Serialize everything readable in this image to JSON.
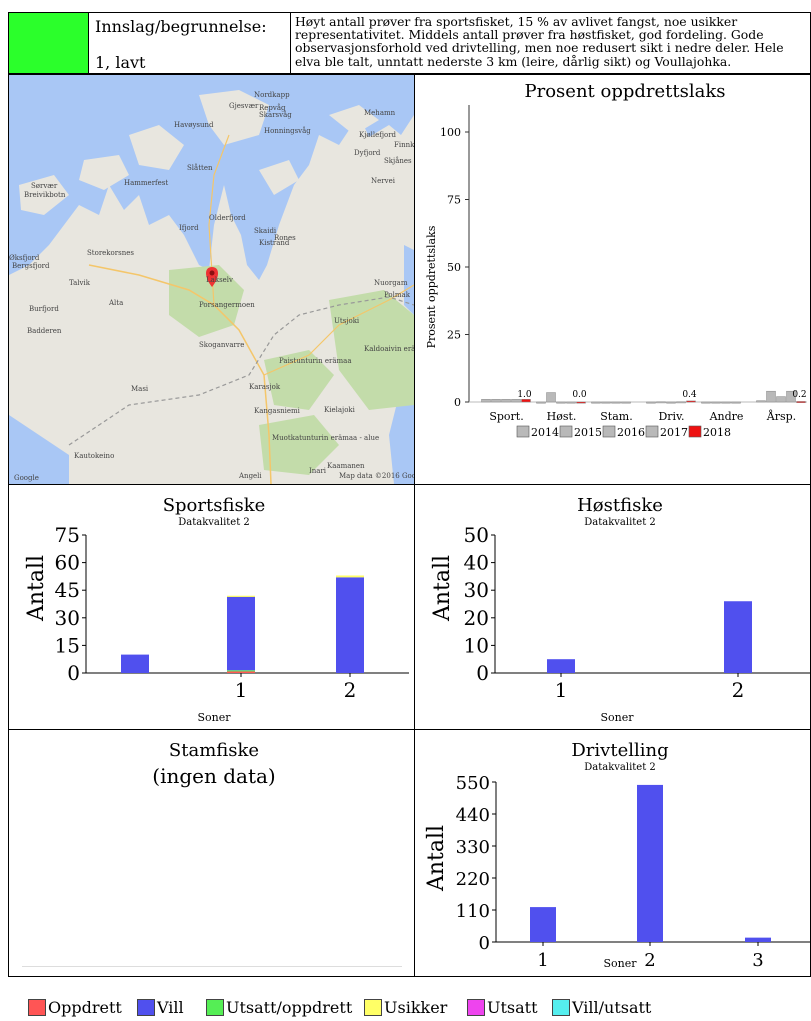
{
  "header": {
    "status_color": "#2bff2b",
    "label": "Innslag/begrunnelse:",
    "rating": "1, lavt",
    "description": "Høyt antall prøver fra sportsfisket, 15 % av avlivet fangst, noe usikker representativitet. Middels antall prøver fra høstfisket, god fordeling. Gode observasjonsforhold ved drivtelling, men noe redusert sikt i nedre deler. Hele elva ble talt, unntatt nederste 3 km (leire, dårlig sikt) og Voullajohka."
  },
  "map": {
    "places": [
      "Nordkapp",
      "Gjesvær",
      "Repvåg",
      "Skarsvåg",
      "Mehamn",
      "Havøysund",
      "Honningsvåg",
      "Kjøllefjord",
      "Finnko",
      "Dyfjord",
      "Slåtten",
      "Skjånes",
      "Sørvær",
      "Hammerfest",
      "Nervei",
      "Breivikbotn",
      "Olderfjord",
      "Ifjord",
      "Skaidi",
      "Kistrand",
      "Rones",
      "Øksfjord",
      "Storekorsnes",
      "Lakselv",
      "Nuorgam",
      "Talvik",
      "Alta",
      "Porsangermoen",
      "Polmak",
      "Burfjord",
      "Skoganvarre",
      "Utsjoki",
      "Badderen",
      "Paistunturin erämaa",
      "Kaldoaivin erämaa",
      "Masi",
      "Karasjok",
      "Kangasniemi",
      "Kielajoki",
      "Muotkatunturin erämaa - alue",
      "Kautokeino",
      "Kaamanen",
      "Angeli",
      "Inari",
      "Bergsfjord",
      "Google",
      "Map data ©2016 Google"
    ],
    "marker": "location-pin-icon"
  },
  "chart_data": [
    {
      "type": "bar",
      "title": "Prosent oppdrettslaks",
      "xlabel": "",
      "ylabel": "Prosent oppdrettslaks",
      "ylim": [
        0,
        110
      ],
      "yticks": [
        0,
        25,
        50,
        75,
        100
      ],
      "categories": [
        "Sport.",
        "Høst.",
        "Stam.",
        "Driv.",
        "Andre",
        "Årsp."
      ],
      "series": [
        {
          "name": "2014",
          "color": "#b9b9b9",
          "values": [
            1.0,
            0,
            0,
            0,
            0,
            0.5
          ]
        },
        {
          "name": "2015",
          "color": "#b9b9b9",
          "values": [
            1.0,
            3.5,
            0,
            0.1,
            0,
            4.0
          ]
        },
        {
          "name": "2016",
          "color": "#b9b9b9",
          "values": [
            1.0,
            0,
            0,
            0,
            0,
            2.0
          ]
        },
        {
          "name": "2017",
          "color": "#b9b9b9",
          "values": [
            1.0,
            0,
            0,
            0.1,
            0,
            4.0
          ]
        },
        {
          "name": "2018",
          "color": "#ee1111",
          "values": [
            1.0,
            0.0,
            null,
            0.4,
            null,
            0.2
          ]
        }
      ],
      "data_labels": [
        "1.0",
        "0.0",
        "",
        "0.4",
        "",
        "0.2"
      ],
      "legend": [
        "2014",
        "2015",
        "2016",
        "2017",
        "2018"
      ]
    },
    {
      "type": "bar",
      "title": "Sportsfiske",
      "subtitle": "Datakvalitet 2",
      "xlabel": "Soner",
      "ylabel": "Antall",
      "ylim": [
        0,
        75
      ],
      "yticks": [
        0,
        15,
        30,
        45,
        60,
        75
      ],
      "xticks": [
        "1",
        "2"
      ],
      "stacks": [
        {
          "label": "",
          "vill": 10,
          "oppdrett": 0,
          "usikker": 0,
          "utsatt_oppdrett": 0
        },
        {
          "label": "1",
          "vill": 40,
          "oppdrett": 1,
          "usikker": 0.5,
          "utsatt_oppdrett": 0.5
        },
        {
          "label": "2",
          "vill": 52,
          "oppdrett": 0,
          "usikker": 1,
          "utsatt_oppdrett": 0
        }
      ]
    },
    {
      "type": "bar",
      "title": "Høstfiske",
      "subtitle": "Datakvalitet 2",
      "xlabel": "Soner",
      "ylabel": "Antall",
      "ylim": [
        0,
        50
      ],
      "yticks": [
        0,
        10,
        20,
        30,
        40,
        50
      ],
      "xticks": [
        "1",
        "2"
      ],
      "stacks": [
        {
          "label": "1",
          "vill": 5
        },
        {
          "label": "2",
          "vill": 26
        }
      ]
    },
    {
      "type": "bar",
      "title": "Stamfiske",
      "note": "(ingen data)"
    },
    {
      "type": "bar",
      "title": "Drivtelling",
      "subtitle": "Datakvalitet 2",
      "xlabel": "Soner",
      "ylabel": "Antall",
      "ylim": [
        0,
        550
      ],
      "yticks": [
        0,
        110,
        220,
        330,
        440,
        550
      ],
      "xticks": [
        "1",
        "2",
        "3"
      ],
      "stacks": [
        {
          "label": "1",
          "vill": 120
        },
        {
          "label": "2",
          "vill": 540
        },
        {
          "label": "3",
          "vill": 15
        }
      ]
    }
  ],
  "legend": [
    {
      "label": "Oppdrett",
      "color": "#ff5555"
    },
    {
      "label": "Vill",
      "color": "#5050ee"
    },
    {
      "label": "Utsatt/oppdrett",
      "color": "#55ee55"
    },
    {
      "label": "Usikker",
      "color": "#ffff66"
    },
    {
      "label": "Utsatt",
      "color": "#ee44ee"
    },
    {
      "label": "Vill/utsatt",
      "color": "#55eeee"
    }
  ]
}
